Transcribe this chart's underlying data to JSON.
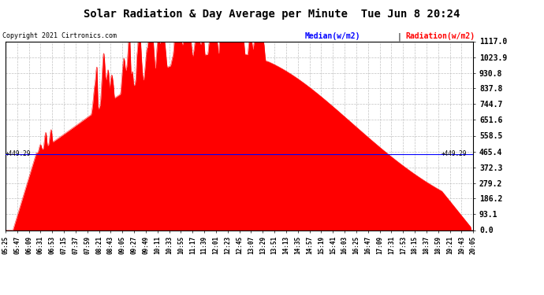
{
  "title": "Solar Radiation & Day Average per Minute  Tue Jun 8 20:24",
  "copyright": "Copyright 2021 Cirtronics.com",
  "legend_median": "Median(w/m2)",
  "legend_radiation": "Radiation(w/m2)",
  "median_value": 449.29,
  "y_max": 1117.0,
  "y_min": 0.0,
  "y_ticks": [
    0.0,
    93.1,
    186.2,
    279.2,
    372.3,
    465.4,
    558.5,
    651.6,
    744.7,
    837.8,
    930.8,
    1023.9,
    1117.0
  ],
  "y_tick_labels": [
    "0.0",
    "93.1",
    "186.2",
    "279.2",
    "372.3",
    "465.4",
    "558.5",
    "651.6",
    "744.7",
    "837.8",
    "930.8",
    "1023.9",
    "1117.0"
  ],
  "x_tick_labels": [
    "05:25",
    "05:47",
    "06:09",
    "06:31",
    "06:53",
    "07:15",
    "07:37",
    "07:59",
    "08:21",
    "08:43",
    "09:05",
    "09:27",
    "09:49",
    "10:11",
    "10:33",
    "10:55",
    "11:17",
    "11:39",
    "12:01",
    "12:23",
    "12:45",
    "13:07",
    "13:29",
    "13:51",
    "14:13",
    "14:35",
    "14:57",
    "15:19",
    "15:41",
    "16:03",
    "16:25",
    "16:47",
    "17:09",
    "17:31",
    "17:53",
    "18:15",
    "18:37",
    "18:59",
    "19:21",
    "19:43",
    "20:05"
  ],
  "background_color": "#ffffff",
  "fill_color": "#ff0000",
  "line_color": "#ff0000",
  "median_line_color": "#0000ff",
  "grid_color": "#bbbbbb",
  "title_color": "#000000",
  "copyright_color": "#000000",
  "legend_median_color": "#0000ff",
  "legend_radiation_color": "#ff0000"
}
